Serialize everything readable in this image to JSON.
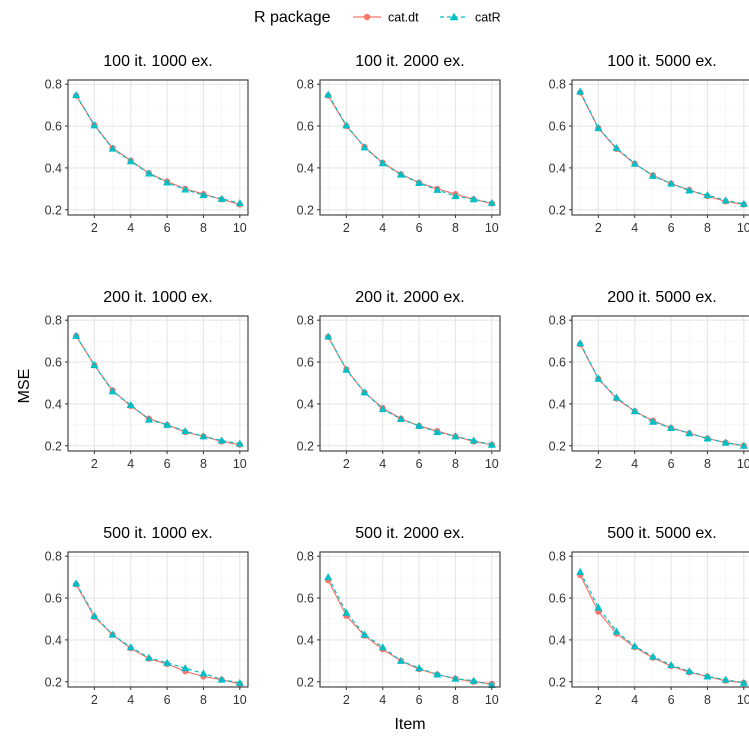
{
  "legend": {
    "title": "R package",
    "items": [
      {
        "label": "cat.dt",
        "color": "#F8766D",
        "line": "solid",
        "marker": "circle"
      },
      {
        "label": "catR",
        "color": "#00BFC4",
        "line": "dashed",
        "marker": "triangle"
      }
    ]
  },
  "axes": {
    "xlabel": "Item",
    "ylabel": "MSE",
    "x_ticks": [
      2,
      4,
      6,
      8,
      10
    ],
    "y_ticks": [
      "0.2",
      "0.4",
      "0.6",
      "0.8"
    ],
    "xlim": [
      0.55,
      10.45
    ],
    "ylim": [
      0.175,
      0.82
    ]
  },
  "chart_data": [
    {
      "type": "line",
      "title": "100 it. 1000 ex.",
      "x": [
        1,
        2,
        3,
        4,
        5,
        6,
        7,
        8,
        9,
        10
      ],
      "series": [
        {
          "name": "cat.dt",
          "values": [
            0.745,
            0.605,
            0.495,
            0.435,
            0.375,
            0.335,
            0.3,
            0.275,
            0.25,
            0.225
          ]
        },
        {
          "name": "catR",
          "values": [
            0.748,
            0.603,
            0.492,
            0.432,
            0.373,
            0.33,
            0.297,
            0.27,
            0.252,
            0.232
          ]
        }
      ]
    },
    {
      "type": "line",
      "title": "100 it. 2000 ex.",
      "x": [
        1,
        2,
        3,
        4,
        5,
        6,
        7,
        8,
        9,
        10
      ],
      "series": [
        {
          "name": "cat.dt",
          "values": [
            0.745,
            0.6,
            0.5,
            0.425,
            0.37,
            0.33,
            0.3,
            0.275,
            0.25,
            0.23
          ]
        },
        {
          "name": "catR",
          "values": [
            0.75,
            0.603,
            0.498,
            0.422,
            0.368,
            0.328,
            0.295,
            0.265,
            0.25,
            0.233
          ]
        }
      ]
    },
    {
      "type": "line",
      "title": "100 it. 5000 ex.",
      "x": [
        1,
        2,
        3,
        4,
        5,
        6,
        7,
        8,
        9,
        10
      ],
      "series": [
        {
          "name": "cat.dt",
          "values": [
            0.76,
            0.59,
            0.49,
            0.42,
            0.365,
            0.325,
            0.295,
            0.265,
            0.24,
            0.225
          ]
        },
        {
          "name": "catR",
          "values": [
            0.765,
            0.59,
            0.495,
            0.42,
            0.362,
            0.325,
            0.292,
            0.27,
            0.245,
            0.228
          ]
        }
      ]
    },
    {
      "type": "line",
      "title": "200 it. 1000 ex.",
      "x": [
        1,
        2,
        3,
        4,
        5,
        6,
        7,
        8,
        9,
        10
      ],
      "series": [
        {
          "name": "cat.dt",
          "values": [
            0.725,
            0.585,
            0.465,
            0.39,
            0.33,
            0.3,
            0.265,
            0.245,
            0.22,
            0.205
          ]
        },
        {
          "name": "catR",
          "values": [
            0.725,
            0.585,
            0.46,
            0.395,
            0.325,
            0.3,
            0.27,
            0.245,
            0.225,
            0.21
          ]
        }
      ]
    },
    {
      "type": "line",
      "title": "200 it. 2000 ex.",
      "x": [
        1,
        2,
        3,
        4,
        5,
        6,
        7,
        8,
        9,
        10
      ],
      "series": [
        {
          "name": "cat.dt",
          "values": [
            0.72,
            0.565,
            0.455,
            0.38,
            0.33,
            0.295,
            0.27,
            0.245,
            0.22,
            0.205
          ]
        },
        {
          "name": "catR",
          "values": [
            0.722,
            0.563,
            0.455,
            0.375,
            0.328,
            0.295,
            0.265,
            0.245,
            0.225,
            0.205
          ]
        }
      ]
    },
    {
      "type": "line",
      "title": "200 it. 5000 ex.",
      "x": [
        1,
        2,
        3,
        4,
        5,
        6,
        7,
        8,
        9,
        10
      ],
      "series": [
        {
          "name": "cat.dt",
          "values": [
            0.685,
            0.52,
            0.425,
            0.365,
            0.32,
            0.285,
            0.26,
            0.235,
            0.215,
            0.2
          ]
        },
        {
          "name": "catR",
          "values": [
            0.69,
            0.52,
            0.43,
            0.365,
            0.315,
            0.285,
            0.26,
            0.235,
            0.215,
            0.2
          ]
        }
      ]
    },
    {
      "type": "line",
      "title": "500 it. 1000 ex.",
      "x": [
        1,
        2,
        3,
        4,
        5,
        6,
        7,
        8,
        9,
        10
      ],
      "series": [
        {
          "name": "cat.dt",
          "values": [
            0.665,
            0.51,
            0.425,
            0.36,
            0.31,
            0.285,
            0.25,
            0.225,
            0.21,
            0.19
          ]
        },
        {
          "name": "catR",
          "values": [
            0.67,
            0.515,
            0.425,
            0.365,
            0.315,
            0.29,
            0.265,
            0.24,
            0.21,
            0.195
          ]
        }
      ]
    },
    {
      "type": "line",
      "title": "500 it. 2000 ex.",
      "x": [
        1,
        2,
        3,
        4,
        5,
        6,
        7,
        8,
        9,
        10
      ],
      "series": [
        {
          "name": "cat.dt",
          "values": [
            0.685,
            0.515,
            0.42,
            0.355,
            0.3,
            0.26,
            0.235,
            0.215,
            0.2,
            0.19
          ]
        },
        {
          "name": "catR",
          "values": [
            0.7,
            0.53,
            0.425,
            0.365,
            0.3,
            0.265,
            0.235,
            0.215,
            0.205,
            0.185
          ]
        }
      ]
    },
    {
      "type": "line",
      "title": "500 it. 5000 ex.",
      "x": [
        1,
        2,
        3,
        4,
        5,
        6,
        7,
        8,
        9,
        10
      ],
      "series": [
        {
          "name": "cat.dt",
          "values": [
            0.71,
            0.535,
            0.43,
            0.365,
            0.315,
            0.275,
            0.245,
            0.225,
            0.205,
            0.195
          ]
        },
        {
          "name": "catR",
          "values": [
            0.725,
            0.555,
            0.44,
            0.37,
            0.32,
            0.28,
            0.25,
            0.225,
            0.21,
            0.195
          ]
        }
      ]
    }
  ]
}
